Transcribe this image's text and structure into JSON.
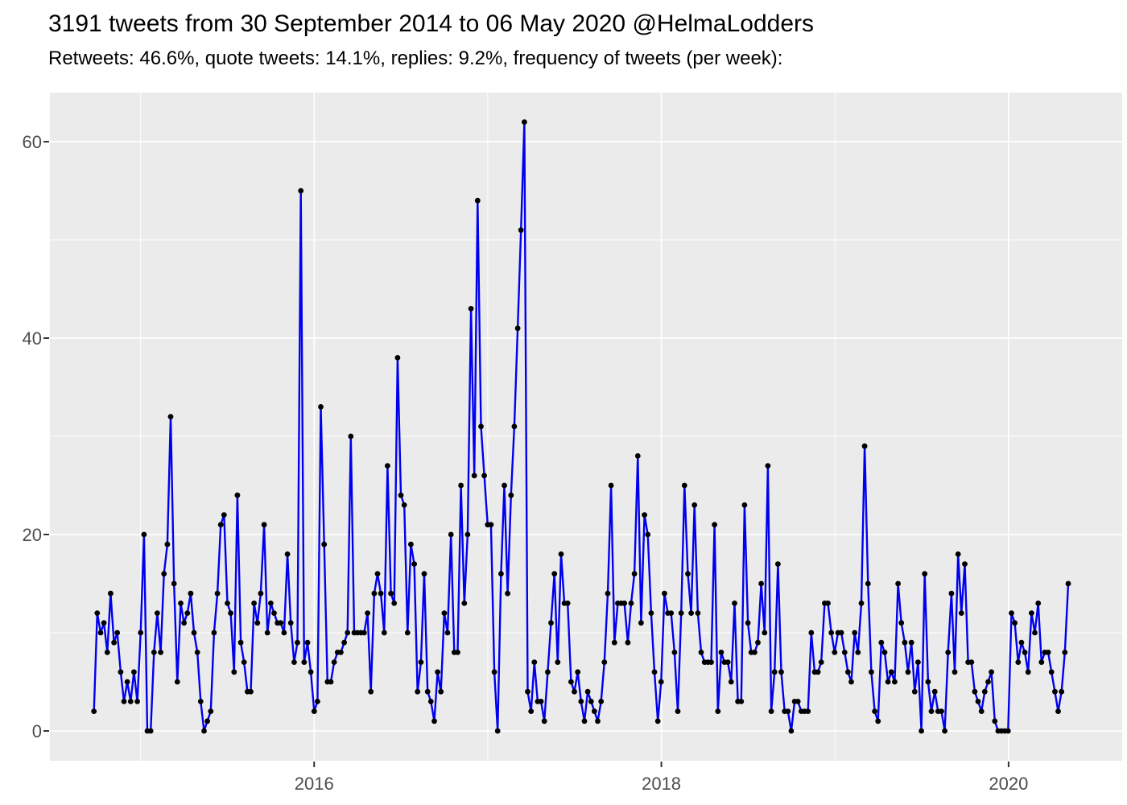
{
  "header": {
    "title": "3191 tweets from 30 September 2014 to 06 May 2020 @HelmaLodders",
    "subtitle": "Retweets: 46.6%, quote tweets: 14.1%, replies: 9.2%, frequency of tweets (per week):"
  },
  "chart_data": {
    "type": "line",
    "title": "3191 tweets from 30 September 2014 to 06 May 2020 @HelmaLodders",
    "subtitle": "Retweets: 46.6%, quote tweets: 14.1%, replies: 9.2%, frequency of tweets (per week):",
    "xlabel": "",
    "ylabel": "",
    "legend": "none",
    "grid": "on",
    "x_axis": {
      "tick_labels": [
        "2016",
        "2018",
        "2020"
      ],
      "tick_years": [
        2016,
        2018,
        2020
      ],
      "minor_grid_years": [
        2015,
        2017,
        2019
      ]
    },
    "y_axis": {
      "tick_labels": [
        "0",
        "20",
        "40",
        "60"
      ],
      "tick_values": [
        0,
        20,
        40,
        60
      ],
      "minor_grid_values": [
        10,
        30,
        50
      ],
      "lim": [
        0,
        62
      ]
    },
    "series": [
      {
        "name": "tweets per week",
        "start_date": "2014-09-30",
        "end_date": "2020-05-05",
        "interval_days": 7,
        "values": [
          2,
          12,
          10,
          11,
          8,
          14,
          9,
          10,
          6,
          3,
          5,
          3,
          6,
          3,
          10,
          20,
          0,
          0,
          8,
          12,
          8,
          16,
          19,
          32,
          15,
          5,
          13,
          11,
          12,
          14,
          10,
          8,
          3,
          0,
          1,
          2,
          10,
          14,
          21,
          22,
          13,
          12,
          6,
          24,
          9,
          7,
          4,
          4,
          13,
          11,
          14,
          21,
          10,
          13,
          12,
          11,
          11,
          10,
          18,
          11,
          7,
          9,
          55,
          7,
          9,
          6,
          2,
          3,
          33,
          19,
          5,
          5,
          7,
          8,
          8,
          9,
          10,
          30,
          10,
          10,
          10,
          10,
          12,
          4,
          14,
          16,
          14,
          10,
          27,
          14,
          13,
          38,
          24,
          23,
          10,
          19,
          17,
          4,
          7,
          16,
          4,
          3,
          1,
          6,
          4,
          12,
          10,
          20,
          8,
          8,
          25,
          13,
          20,
          43,
          26,
          54,
          31,
          26,
          21,
          21,
          6,
          0,
          16,
          25,
          14,
          24,
          31,
          41,
          51,
          62,
          4,
          2,
          7,
          3,
          3,
          1,
          6,
          11,
          16,
          7,
          18,
          13,
          13,
          5,
          4,
          6,
          3,
          1,
          4,
          3,
          2,
          1,
          3,
          7,
          14,
          25,
          9,
          13,
          13,
          13,
          9,
          13,
          16,
          28,
          11,
          22,
          20,
          12,
          6,
          1,
          5,
          14,
          12,
          12,
          8,
          2,
          12,
          25,
          16,
          12,
          23,
          12,
          8,
          7,
          7,
          7,
          21,
          2,
          8,
          7,
          7,
          5,
          13,
          3,
          3,
          23,
          11,
          8,
          8,
          9,
          15,
          10,
          27,
          2,
          6,
          17,
          6,
          2,
          2,
          0,
          3,
          3,
          2,
          2,
          2,
          10,
          6,
          6,
          7,
          13,
          13,
          10,
          8,
          10,
          10,
          8,
          6,
          5,
          10,
          8,
          13,
          29,
          15,
          6,
          2,
          1,
          9,
          8,
          5,
          6,
          5,
          15,
          11,
          9,
          6,
          9,
          4,
          7,
          0,
          16,
          5,
          2,
          4,
          2,
          2,
          0,
          8,
          14,
          6,
          18,
          12,
          17,
          7,
          7,
          4,
          3,
          2,
          4,
          5,
          6,
          1,
          0,
          0,
          0,
          0,
          12,
          11,
          7,
          9,
          8,
          6,
          12,
          10,
          13,
          7,
          8,
          8,
          6,
          4,
          2,
          4,
          8,
          15
        ]
      }
    ],
    "colors": {
      "line": "#0000EE",
      "marker": "#000000",
      "panel_background": "#EBEBEB",
      "gridline": "#FFFFFF",
      "tick_text": "#4D4D4D",
      "tick_mark": "#333333",
      "title_text": "#000000"
    }
  }
}
